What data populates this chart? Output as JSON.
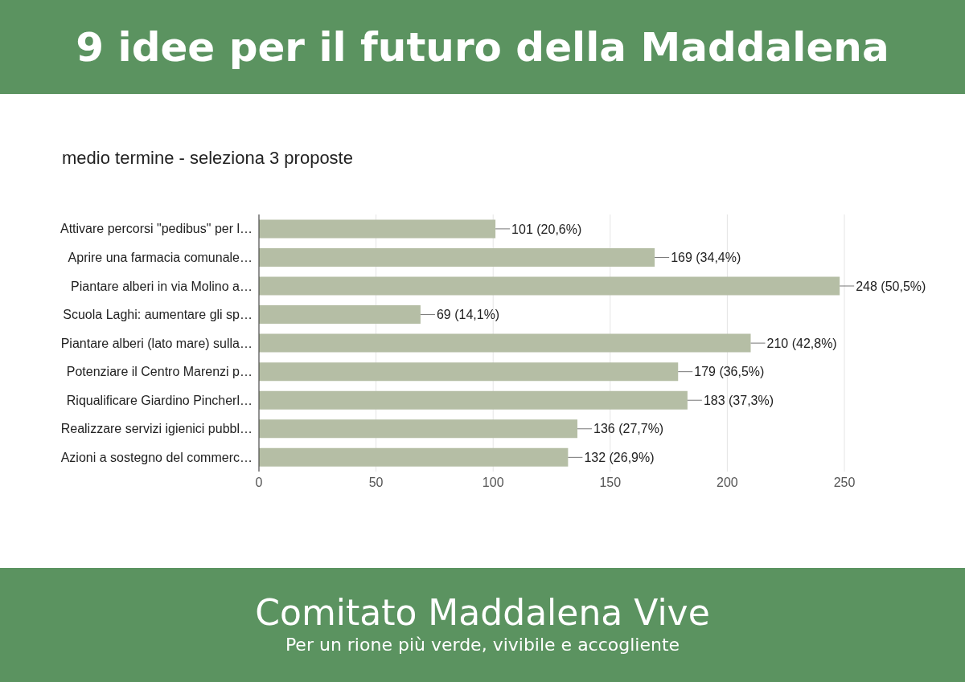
{
  "chart_data": {
    "type": "bar",
    "orientation": "horizontal",
    "title": "9 idee per il futuro della Maddalena",
    "subtitle": "medio termine - seleziona 3 proposte",
    "categories": [
      "Attivare percorsi \"pedibus\" per l…",
      "Aprire una farmacia comunale…",
      "Piantare alberi in via Molino a…",
      "Scuola Laghi: aumentare gli sp…",
      "Piantare alberi (lato mare) sulla…",
      "Potenziare il Centro Marenzi p…",
      "Riqualificare Giardino Pincherl…",
      "Realizzare servizi igienici pubbl…",
      "Azioni a sostegno del commerc…"
    ],
    "values": [
      101,
      169,
      248,
      69,
      210,
      179,
      183,
      136,
      132
    ],
    "value_labels": [
      "101 (20,6%)",
      "169 (34,4%)",
      "248 (50,5%)",
      "69 (14,1%)",
      "210 (42,8%)",
      "179 (36,5%)",
      "183 (37,3%)",
      "136 (27,7%)",
      "132 (26,9%)"
    ],
    "color": "#b5bea5",
    "xlim": [
      0,
      250
    ],
    "xticks": [
      0,
      50,
      100,
      150,
      200,
      250
    ],
    "grid": "x",
    "annotations": [
      "Comitato Maddalena Vive",
      "Per un rione più verde, vivibile e accogliente"
    ]
  }
}
